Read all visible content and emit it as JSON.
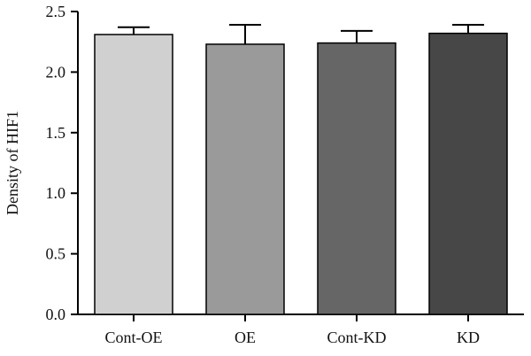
{
  "chart_data": {
    "type": "bar",
    "title": "",
    "xlabel": "",
    "ylabel": "Density of HIF1",
    "ylim": [
      0,
      2.5
    ],
    "yticks": [
      "0.0",
      "0.5",
      "1.0",
      "1.5",
      "2.0",
      "2.5"
    ],
    "categories": [
      "Cont-OE",
      "OE",
      "Cont-KD",
      "KD"
    ],
    "values": [
      2.31,
      2.23,
      2.24,
      2.32
    ],
    "error": [
      0.06,
      0.16,
      0.1,
      0.07
    ],
    "colors": [
      "#d0d0d0",
      "#9a9a9a",
      "#666666",
      "#474747"
    ],
    "grid": false,
    "legend": "none"
  }
}
